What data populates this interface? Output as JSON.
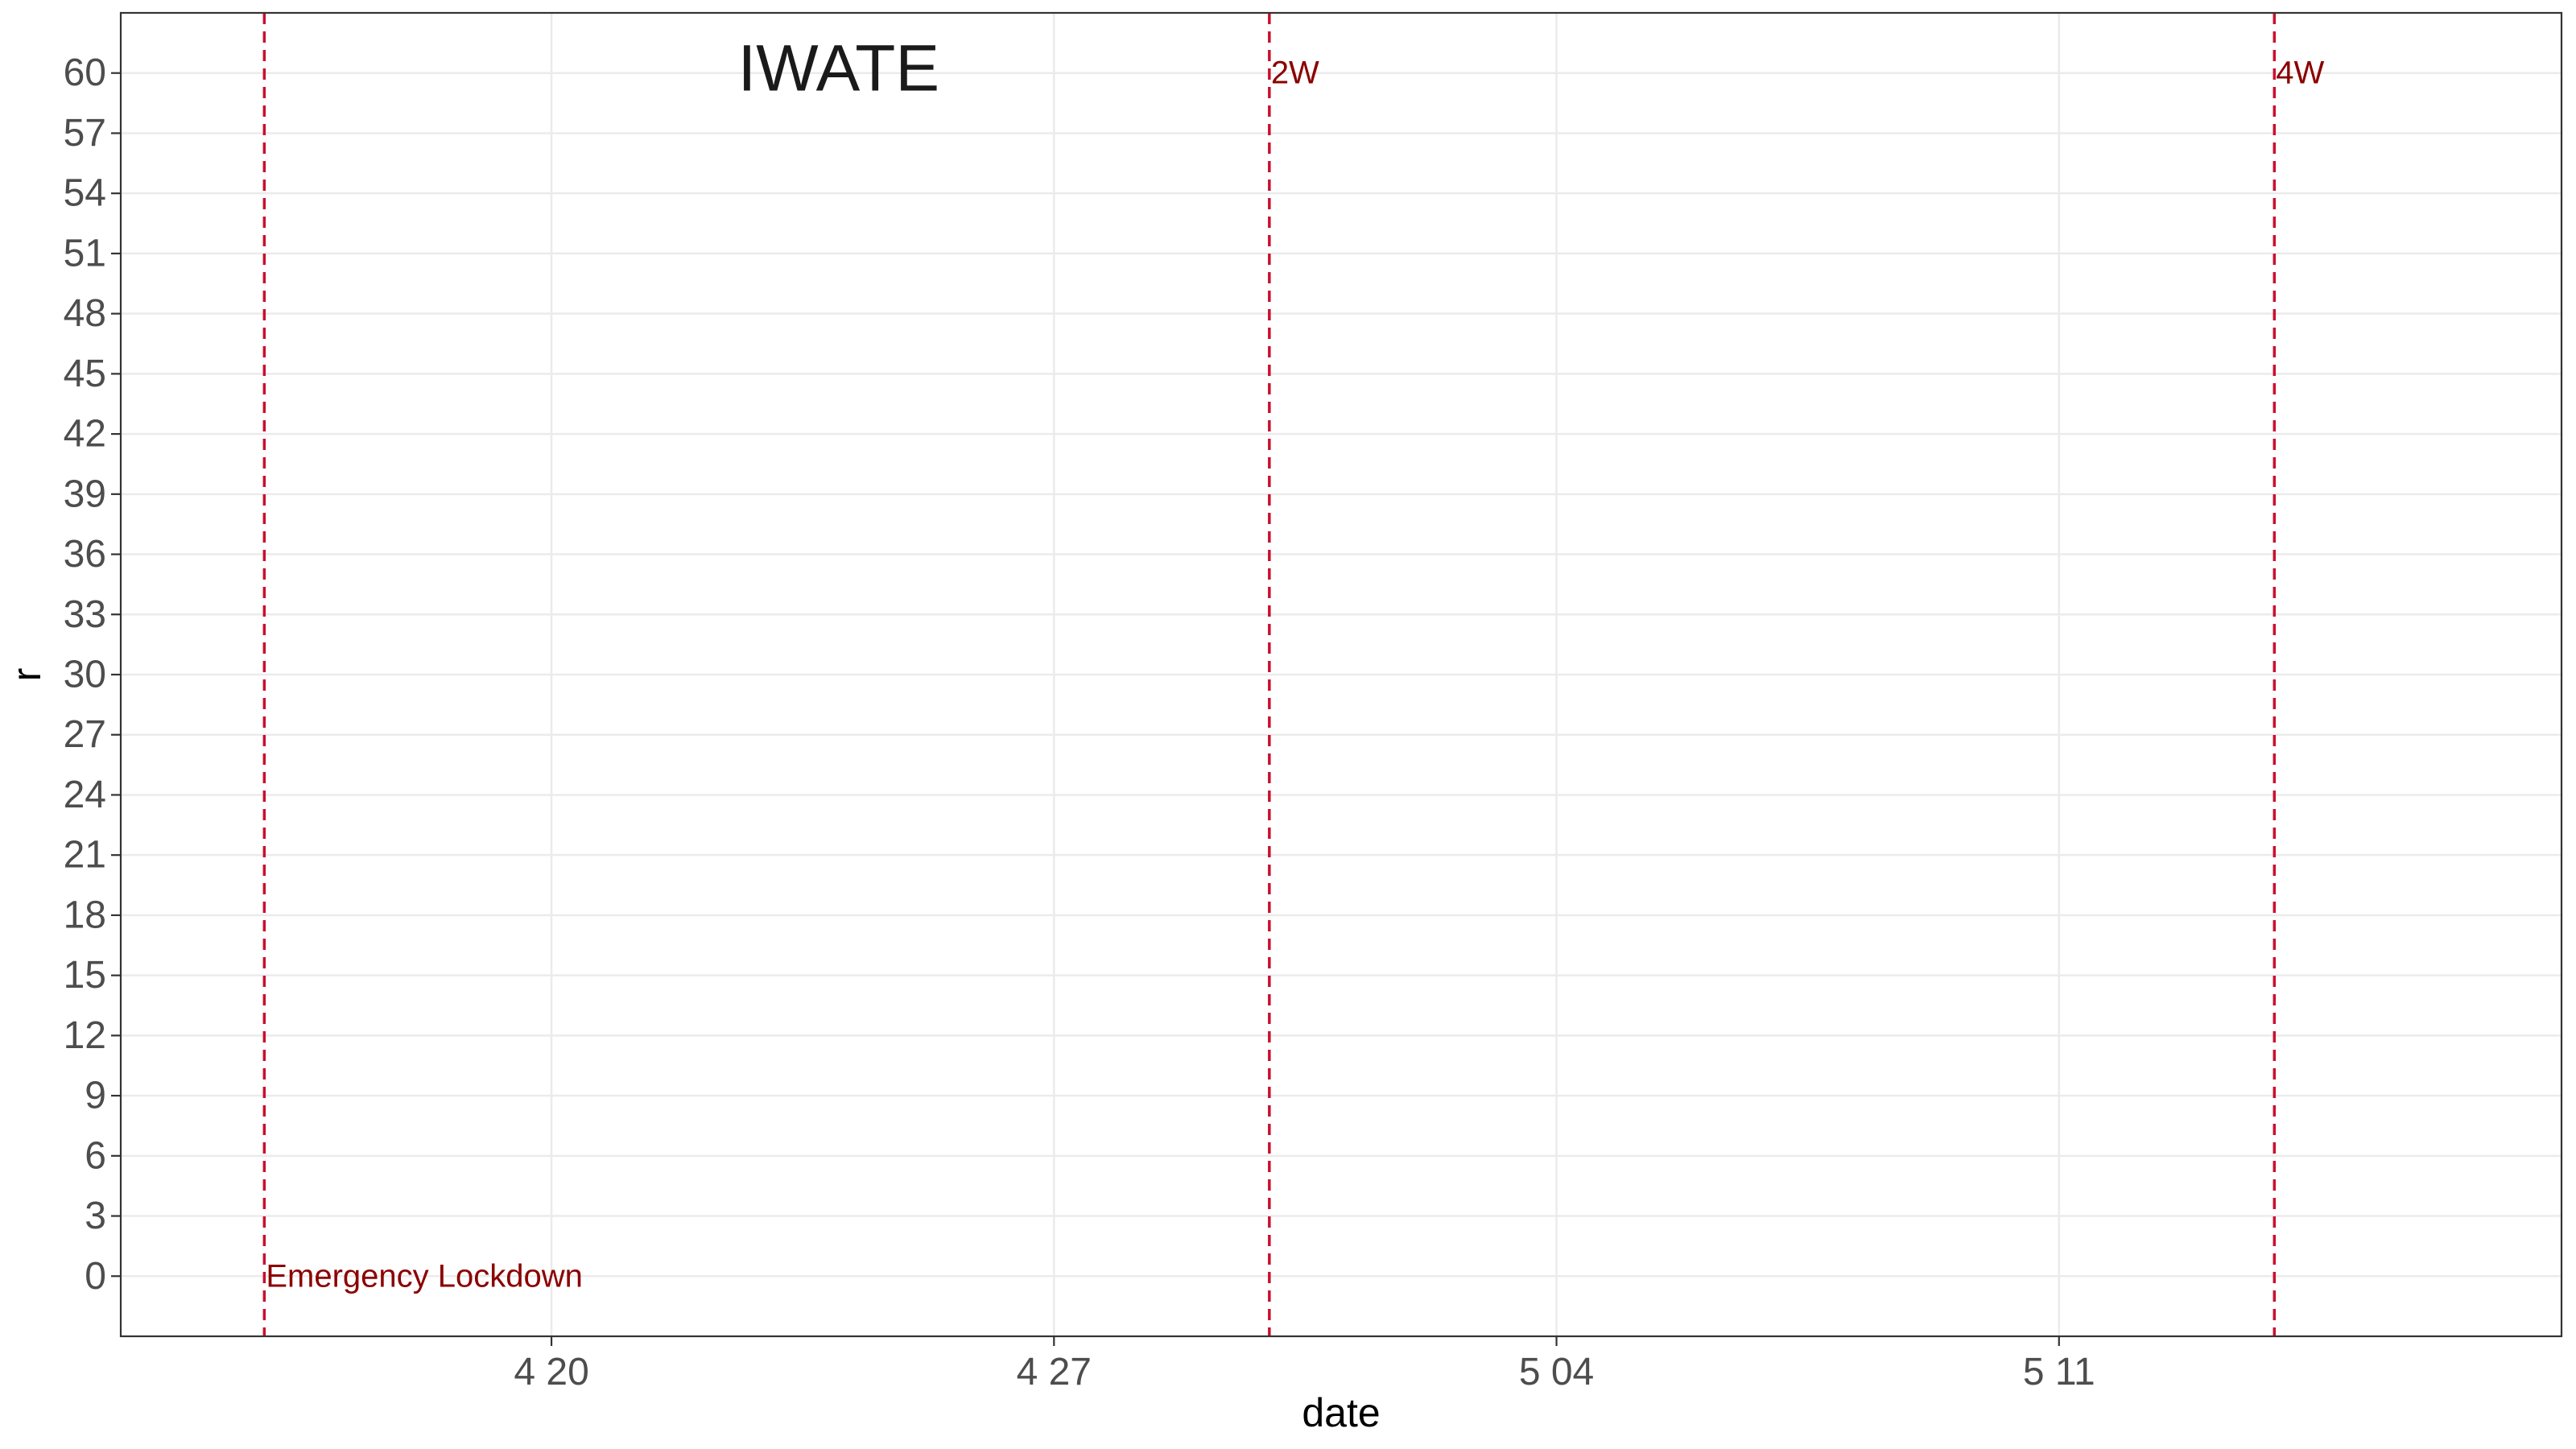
{
  "chart_data": {
    "type": "line",
    "title": "IWATE",
    "xlabel": "date",
    "ylabel": "r",
    "x_type": "date",
    "xlim": [
      "2020-04-14",
      "2020-05-18"
    ],
    "ylim": [
      -3,
      63
    ],
    "x_ticks": [
      {
        "date": "2020-04-20",
        "label": "4 20"
      },
      {
        "date": "2020-04-27",
        "label": "4 27"
      },
      {
        "date": "2020-05-04",
        "label": "5 04"
      },
      {
        "date": "2020-05-11",
        "label": "5 11"
      }
    ],
    "y_ticks": [
      0,
      3,
      6,
      9,
      12,
      15,
      18,
      21,
      24,
      27,
      30,
      33,
      36,
      39,
      42,
      45,
      48,
      51,
      54,
      57,
      60
    ],
    "grid": true,
    "series": [],
    "vlines": [
      {
        "date": "2020-04-16",
        "label": "Emergency Lockdown",
        "label_y": 0
      },
      {
        "date": "2020-04-30",
        "label": "2W",
        "label_y": 60
      },
      {
        "date": "2020-05-14",
        "label": "4W",
        "label_y": 60
      }
    ],
    "title_anchor": {
      "date": "2020-04-24",
      "y": 60
    },
    "colors": {
      "vline": "#c8102e",
      "vline_label": "#8b0000",
      "grid": "#ebebeb",
      "border": "#333333"
    }
  }
}
